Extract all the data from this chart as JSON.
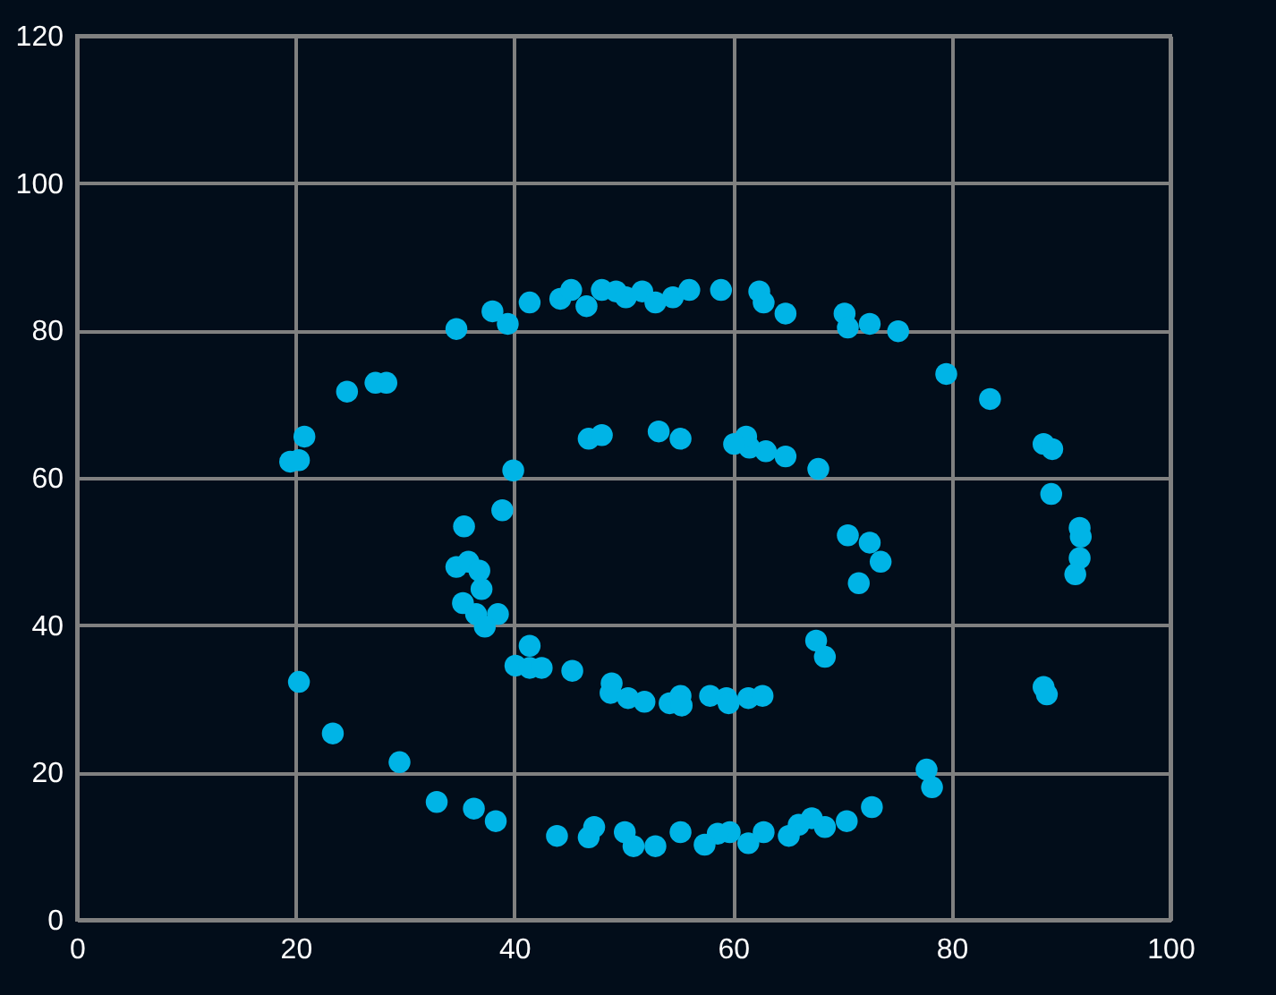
{
  "chart_data": {
    "type": "scatter",
    "xlim": [
      0,
      100
    ],
    "ylim": [
      0,
      120
    ],
    "xticks": [
      0,
      20,
      40,
      60,
      80,
      100
    ],
    "yticks": [
      0,
      20,
      40,
      60,
      80,
      100,
      120
    ],
    "grid": true,
    "marker": "circle",
    "series": [
      {
        "color": "#00b4e6",
        "x": [
          19.5,
          20.3,
          20.8,
          24.7,
          27.3,
          28.3,
          34.7,
          38,
          39.4,
          41.4,
          44.2,
          45.2,
          46.6,
          48,
          49.3,
          50.2,
          51.7,
          52.9,
          54.5,
          56,
          58.9,
          62.4,
          62.8,
          64.8,
          70.2,
          70.5,
          72.5,
          75.1,
          79.5,
          83.5,
          88.4,
          89.2,
          89.1,
          91.7,
          91.8,
          91.7,
          91.3,
          88.4,
          88.7,
          77.7,
          78.2,
          72.7,
          70.4,
          68.4,
          67.2,
          66,
          65.1,
          62.8,
          61.4,
          59.7,
          58.6,
          57.4,
          55.2,
          52.9,
          50.9,
          50.1,
          47.3,
          46.8,
          43.9,
          38.3,
          36.3,
          32.9,
          29.5,
          23.4,
          20.3,
          53.2,
          55.2,
          46.8,
          48,
          39.9,
          38.9,
          35.4,
          34.7,
          35.8,
          36.8,
          37,
          35.3,
          36.5,
          38.5,
          37.3,
          40.1,
          41.4,
          41.4,
          42.5,
          45.3,
          48.8,
          48.9,
          50.4,
          51.9,
          54.2,
          55.2,
          55.3,
          57.9,
          59.4,
          59.6,
          61.4,
          62.7,
          67.6,
          68.4,
          70.5,
          72.5,
          73.5,
          71.5,
          67.8,
          64.8,
          63,
          61.5,
          61.2,
          60.1
        ],
        "values": [
          62.2,
          62.4,
          65.6,
          71.7,
          72.9,
          72.9,
          80.2,
          82.6,
          80.9,
          83.8,
          84.3,
          85.5,
          83.3,
          85.5,
          85.3,
          84.5,
          85.3,
          83.8,
          84.5,
          85.5,
          85.5,
          85.3,
          83.8,
          82.3,
          82.3,
          80.4,
          80.9,
          79.9,
          74.1,
          70.7,
          64.6,
          63.9,
          57.8,
          53.2,
          52,
          49.1,
          46.9,
          31.6,
          30.6,
          20.4,
          18,
          15.3,
          13.4,
          12.6,
          13.8,
          12.9,
          11.4,
          11.9,
          10.4,
          11.9,
          11.7,
          10.2,
          11.9,
          10,
          10,
          11.9,
          12.6,
          11.2,
          11.4,
          13.4,
          15.1,
          16,
          21.4,
          25.3,
          32.3,
          66.3,
          65.3,
          65.3,
          65.8,
          61,
          55.6,
          53.4,
          47.9,
          48.6,
          47.4,
          44.9,
          43,
          41.5,
          41.5,
          39.8,
          34.5,
          37.2,
          34.2,
          34.2,
          33.8,
          30.8,
          32.1,
          30.1,
          29.6,
          29.4,
          30.4,
          29.1,
          30.4,
          30.1,
          29.4,
          30.1,
          30.4,
          37.9,
          35.7,
          52.2,
          51.2,
          48.6,
          45.7,
          61.2,
          62.9,
          63.6,
          64.1,
          65.6,
          64.6
        ]
      }
    ]
  }
}
